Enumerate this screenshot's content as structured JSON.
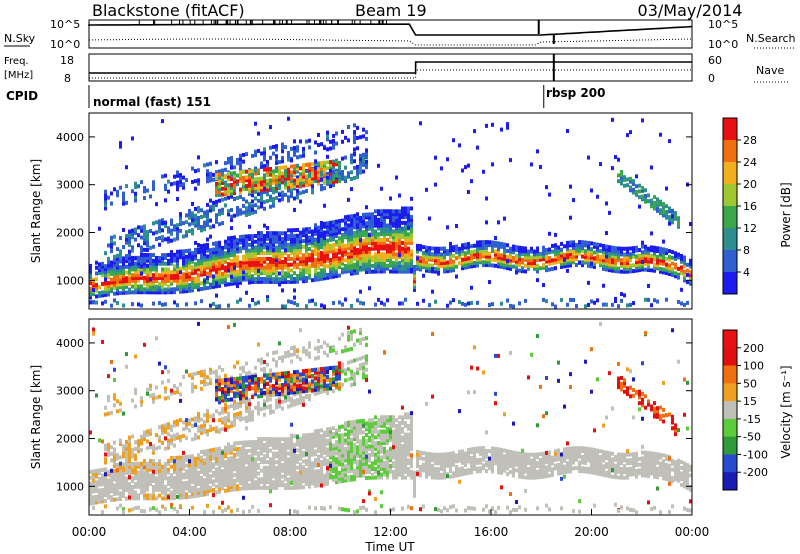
{
  "header": {
    "station": "Blackstone (fitACF)",
    "beam": "Beam 19",
    "date": "03/May/2014"
  },
  "top_panels": {
    "nsky_label": "N.Sky",
    "nsky_ticks": [
      "10^5",
      "10^0"
    ],
    "nsearch_label": "N.Search",
    "nsearch_ticks": [
      "10^5",
      "10^0"
    ],
    "freq_label_1": "Freq.",
    "freq_label_2": "[MHz]",
    "freq_ticks": [
      "18",
      "8"
    ],
    "nave_label": "Nave",
    "nave_ticks": [
      "60",
      "0"
    ],
    "cpid_label": "CPID",
    "cpid_segments": [
      {
        "name": "normal (fast) 151",
        "start_hour": 0,
        "end_hour": 18.1
      },
      {
        "name": "rbsp 200",
        "start_hour": 18.1,
        "end_hour": 24
      }
    ],
    "freq_step_hour": 13
  },
  "chart_data": [
    {
      "type": "heatmap",
      "title": "Power",
      "xlabel": "",
      "ylabel": "Slant Range [km]",
      "xlim_hours": [
        0,
        24
      ],
      "ylim_km": [
        400,
        4500
      ],
      "yticks": [
        "1000",
        "2000",
        "3000",
        "4000"
      ],
      "colorbar_label": "Power [dB]",
      "colorbar_ticks": [
        "4",
        "8",
        "12",
        "16",
        "20",
        "24",
        "28"
      ],
      "colorbar_colors": [
        "#1c1cf0",
        "#2f5fd0",
        "#2f8f8f",
        "#3aa84a",
        "#a0c830",
        "#f0b020",
        "#f07010",
        "#e81010"
      ]
    },
    {
      "type": "heatmap",
      "title": "Velocity",
      "xlabel": "Time UT",
      "ylabel": "Slant Range [km]",
      "xlim_hours": [
        0,
        24
      ],
      "ylim_km": [
        400,
        4500
      ],
      "yticks": [
        "1000",
        "2000",
        "3000",
        "4000"
      ],
      "xticks": [
        "00:00",
        "04:00",
        "08:00",
        "12:00",
        "16:00",
        "20:00",
        "00:00"
      ],
      "colorbar_label": "Velocity [m s⁻¹]",
      "colorbar_ticks": [
        "200",
        "100",
        "50",
        "15",
        "-15",
        "-50",
        "-100",
        "-200"
      ],
      "colorbar_colors": [
        "#1a1ab4",
        "#2a4bd0",
        "#2f9a3a",
        "#5ccc3a",
        "#c0c0b8",
        "#f0a020",
        "#f07010",
        "#e01010",
        "#e81010"
      ]
    }
  ]
}
